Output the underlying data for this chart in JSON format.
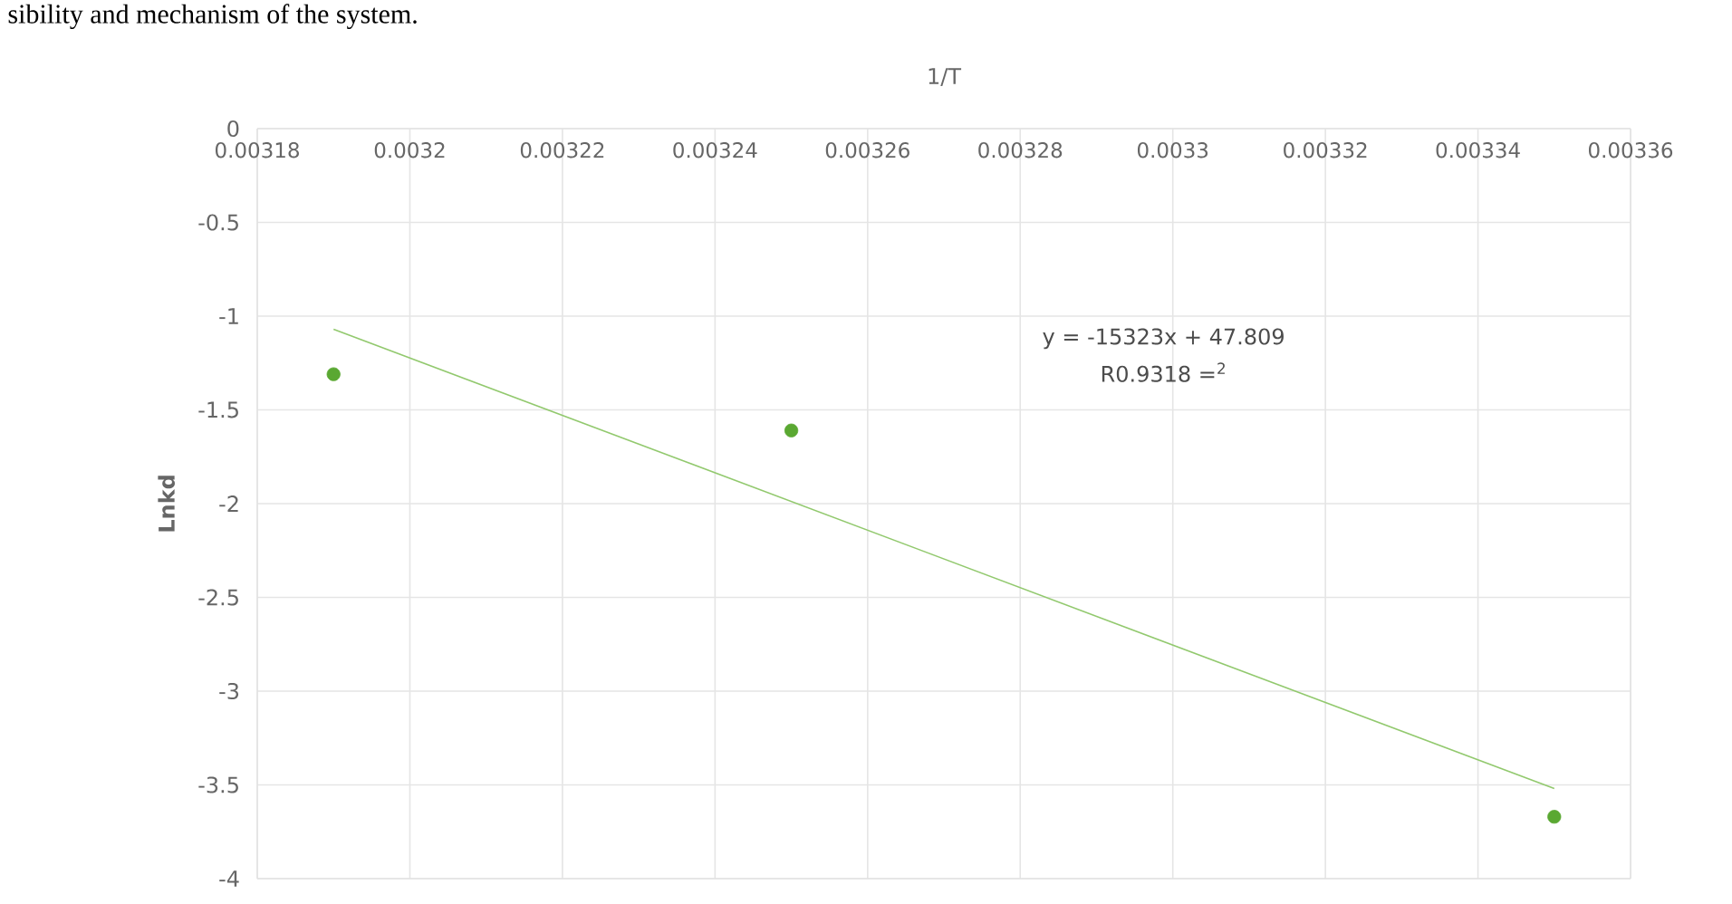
{
  "chart_data": {
    "type": "scatter",
    "xlabel": "1/T",
    "ylabel": "Lnkd",
    "x": [
      0.00319,
      0.00325,
      0.00335
    ],
    "series": [
      {
        "color": "#5aa832",
        "marker": "circle",
        "values": [
          -1.31,
          -1.61,
          -3.67
        ]
      },
      {
        "type": "line",
        "marker": "none",
        "color": "#92c96e",
        "x": [
          0.00319,
          0.00335
        ],
        "values": [
          -1.07,
          -3.52
        ]
      }
    ],
    "xlim": [
      0.00318,
      0.00336
    ],
    "ylim": [
      -4,
      0
    ],
    "xticks": [
      0.00318,
      0.0032,
      0.00322,
      0.00324,
      0.00326,
      0.00328,
      0.0033,
      0.00332,
      0.00334,
      0.00336
    ],
    "yticks": [
      -4,
      -3.5,
      -3,
      -2.5,
      -2,
      -1.5,
      -1,
      -0.5,
      0
    ],
    "grid": true,
    "annotations": [
      "sibility and mechanism of the system.",
      "y = -15323x + 47.809",
      "R0.9318 =$^{2}$"
    ]
  }
}
